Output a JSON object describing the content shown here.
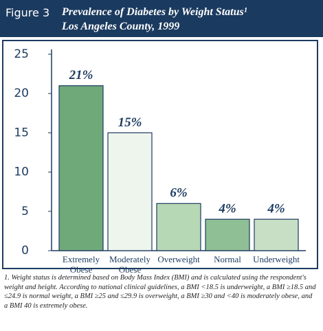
{
  "chart_data": {
    "type": "bar",
    "figure_label": "Figure 3",
    "title": "Prevalence of Diabetes by Weight Status¹",
    "subtitle": "Los Angeles County, 1999",
    "categories": [
      "Extremely Obese",
      "Moderately Obese",
      "Overweight",
      "Normal",
      "Underweight"
    ],
    "values": [
      21,
      15,
      6,
      4,
      4
    ],
    "value_labels": [
      "21%",
      "15%",
      "6%",
      "4%",
      "4%"
    ],
    "colors": [
      "#6fa97a",
      "#eef5ec",
      "#b7d8b5",
      "#8fbf94",
      "#c8dfc6"
    ],
    "ylim": [
      0,
      25
    ],
    "yticks": [
      0,
      5,
      10,
      15,
      20,
      25
    ],
    "footnote": "1. Weight status is determined based on Body Mass Index (BMI) and is calculated using the respondent's weight and height. According to national clinical guidelines, a BMI <18.5 is underweight, a BMI ≥18.5 and ≤24.9 is normal weight, a BMI ≥25 and ≤29.9 is overweight, a BMI ≥30 and <40 is moderately obese, and a BMI 40 is extremely obese."
  }
}
